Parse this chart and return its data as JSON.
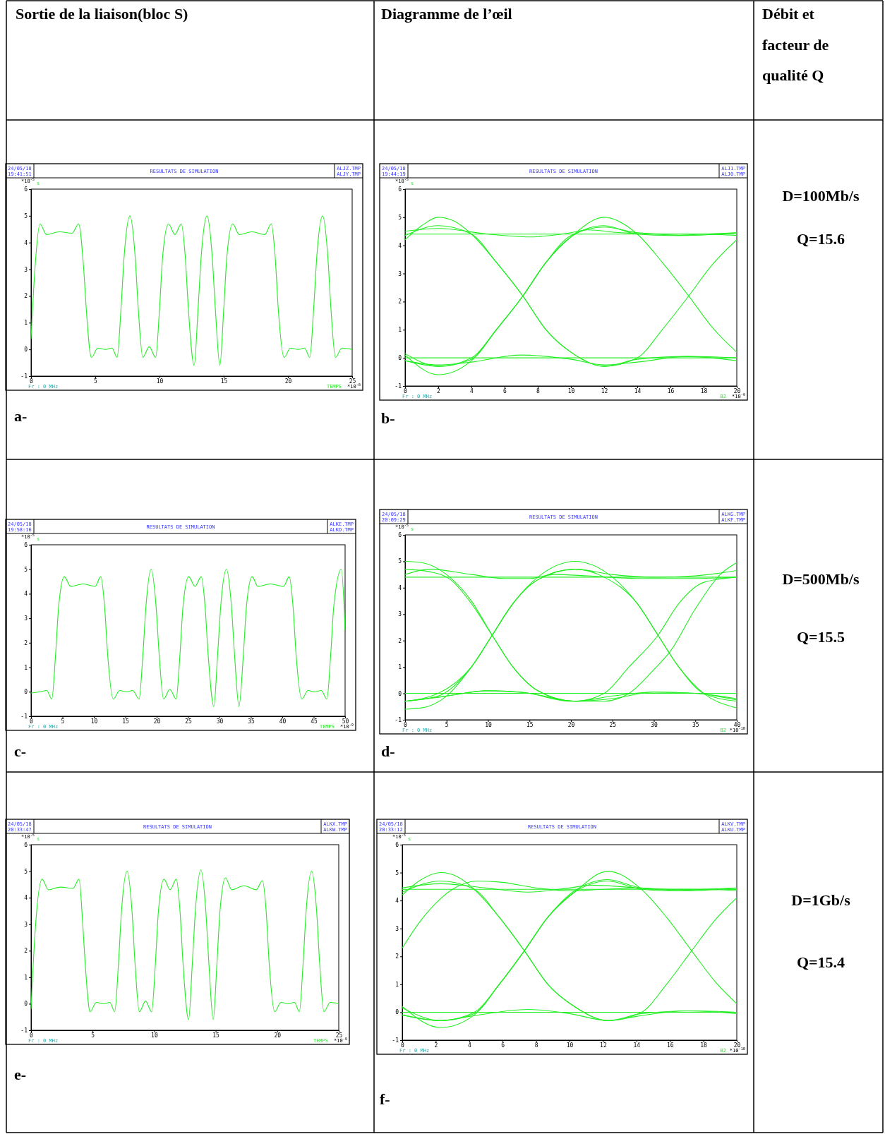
{
  "chart_data": [
    {
      "type": "line",
      "title": "RESULTATS DE SIMULATION",
      "xlabel": "TEMPS",
      "ylabel": "s",
      "xlim": [
        0,
        25
      ],
      "xticks": [
        0,
        5,
        10,
        15,
        20,
        25
      ],
      "ylim": [
        -1,
        6
      ],
      "yticks": [
        -1,
        0,
        1,
        2,
        3,
        4,
        5,
        6
      ],
      "annotations": [
        "24/05/18",
        "19:41:51",
        "ALJZ.TMP",
        "ALJY.TMP",
        "*10$^{-5}$",
        "Fr : 0 MHz",
        "*10$^{-8}$",
        "a-"
      ],
      "series": [
        {
          "color": "#22ee22",
          "x": [
            0,
            0.3,
            0.7,
            1.2,
            2.2,
            3.2,
            3.7,
            4.1,
            4.3,
            4.7,
            5.2,
            5.8,
            6.3,
            6.7,
            7.0,
            7.25,
            7.7,
            8.1,
            8.35,
            8.7,
            9.2,
            9.7,
            10.0,
            10.25,
            10.7,
            11.2,
            11.7,
            12.0,
            12.25,
            12.7,
            13.0,
            13.25,
            13.7,
            14.1,
            14.35,
            14.7,
            15.0,
            15.25,
            15.7,
            16.2,
            17.2,
            18.2,
            18.7,
            19.0,
            19.25,
            19.7,
            20.2,
            20.8,
            21.3,
            21.7,
            22.0,
            22.25,
            22.7,
            23.1,
            23.35,
            23.7,
            24.2,
            25
          ],
          "values": [
            0.4,
            3.0,
            4.7,
            4.3,
            4.4,
            4.35,
            4.7,
            3.0,
            1.5,
            -0.3,
            0.05,
            0,
            0.05,
            -0.3,
            1.5,
            3.5,
            5.0,
            3.5,
            1.5,
            -0.3,
            0.1,
            -0.3,
            1.5,
            3.5,
            4.7,
            4.3,
            4.7,
            3.5,
            1.5,
            -0.6,
            1.5,
            3.5,
            5.0,
            3.5,
            1.5,
            -0.6,
            1.5,
            3.5,
            4.7,
            4.3,
            4.4,
            4.3,
            4.7,
            3.5,
            1.5,
            -0.3,
            0.05,
            0,
            0.05,
            -0.3,
            1.5,
            3.5,
            5.0,
            3.5,
            1.5,
            -0.3,
            0.05,
            0
          ]
        }
      ]
    },
    {
      "type": "line",
      "title": "RESULTATS DE SIMULATION",
      "xlabel": "B2",
      "ylabel": "s",
      "xlim": [
        0,
        20
      ],
      "xticks": [
        0,
        2,
        4,
        6,
        8,
        10,
        12,
        14,
        16,
        18,
        20
      ],
      "ylim": [
        -1,
        6
      ],
      "yticks": [
        -1,
        0,
        1,
        2,
        3,
        4,
        5,
        6
      ],
      "annotations": [
        "24/05/18",
        "19:44:19",
        "ALJ1.TMP",
        "ALJ0.TMP",
        "*10$^{-5}$",
        "Fr : 0 MHz",
        "*10$^{-9}$",
        "b-"
      ],
      "series": [
        {
          "color": "#22ee22",
          "x": [
            0,
            20
          ],
          "values": [
            4.4,
            4.4
          ]
        },
        {
          "color": "#22ee22",
          "x": [
            0,
            20
          ],
          "values": [
            0,
            0
          ]
        },
        {
          "color": "#22ee22",
          "x": [
            0,
            2,
            5,
            7.5,
            10,
            11,
            13,
            15,
            17,
            20
          ],
          "values": [
            4.5,
            4.6,
            4.4,
            4.3,
            4.45,
            4.55,
            4.45,
            4.4,
            4.35,
            4.45
          ]
        },
        {
          "color": "#22ee22",
          "x": [
            0,
            2,
            4,
            7,
            10,
            12,
            14,
            17,
            20
          ],
          "values": [
            -0.1,
            -0.25,
            -0.15,
            0.1,
            -0.05,
            -0.25,
            -0.15,
            0.05,
            -0.1
          ]
        },
        {
          "color": "#22ee22",
          "x": [
            0,
            1,
            2,
            3,
            4,
            5.5,
            7.1,
            8.5,
            10,
            12,
            14,
            17,
            20
          ],
          "values": [
            4.2,
            4.7,
            5.0,
            4.85,
            4.4,
            3.4,
            2.2,
            1.0,
            0.2,
            -0.3,
            -0.05,
            0.05,
            0
          ]
        },
        {
          "color": "#22ee22",
          "x": [
            0,
            2,
            4,
            5.5,
            7.1,
            8.5,
            10,
            12,
            14,
            15.5,
            17.1,
            18.5,
            20
          ],
          "values": [
            4.35,
            4.7,
            4.4,
            3.4,
            2.2,
            1.0,
            0.2,
            -0.3,
            0,
            1.0,
            2.2,
            3.3,
            4.2
          ]
        },
        {
          "color": "#22ee22",
          "x": [
            0,
            2,
            4,
            5.5,
            7.1,
            8.5,
            10,
            12,
            14,
            15.5,
            17.1,
            18.5,
            20
          ],
          "values": [
            0.1,
            -0.6,
            -0.1,
            1.0,
            2.2,
            3.4,
            4.3,
            5.0,
            4.4,
            3.4,
            2.2,
            1.1,
            0.2
          ]
        },
        {
          "color": "#22ee22",
          "x": [
            0,
            2,
            4,
            5.5,
            7.1,
            8.5,
            10,
            12,
            14,
            16,
            18,
            20
          ],
          "values": [
            -0.1,
            -0.3,
            0,
            1.0,
            2.2,
            3.4,
            4.3,
            4.7,
            4.4,
            4.35,
            4.4,
            4.45
          ]
        },
        {
          "color": "#22ee22",
          "x": [
            0,
            2,
            4,
            5.5,
            7.1,
            8.5,
            10,
            12,
            14,
            16,
            18,
            20
          ],
          "values": [
            0.15,
            -0.3,
            -0.05,
            1.0,
            2.2,
            3.4,
            4.35,
            4.65,
            4.45,
            4.4,
            4.4,
            4.35
          ]
        }
      ]
    },
    {
      "type": "line",
      "title": "RESULTATS DE SIMULATION",
      "xlabel": "TEMPS",
      "ylabel": "s",
      "xlim": [
        0,
        50
      ],
      "xticks": [
        0,
        5,
        10,
        15,
        20,
        25,
        30,
        35,
        40,
        45,
        50
      ],
      "ylim": [
        -1,
        6
      ],
      "yticks": [
        -1,
        0,
        1,
        2,
        3,
        4,
        5,
        6
      ],
      "annotations": [
        "24/05/18",
        "19:58:16",
        "ALKE.TMP",
        "ALKD.TMP",
        "*10$^{-5}$",
        "Fr : 0 MHz",
        "*10$^{-9}$",
        "c-"
      ],
      "series": [
        {
          "color": "#22ee22",
          "x": [
            0,
            1.5,
            2.5,
            3.3,
            3.9,
            4.4,
            5.3,
            6.3,
            8.3,
            10.2,
            11.1,
            11.7,
            12.2,
            13.1,
            14.1,
            15.2,
            16.2,
            17.2,
            17.8,
            18.3,
            19.1,
            19.9,
            20.4,
            21.1,
            22.1,
            23.1,
            23.7,
            24.2,
            25.1,
            26.1,
            27.1,
            27.7,
            28.2,
            29.1,
            29.7,
            30.2,
            31.1,
            31.9,
            32.4,
            33.1,
            33.8,
            34.3,
            35.2,
            36.1,
            38.1,
            40.2,
            41.1,
            41.7,
            42.2,
            43.1,
            44.1,
            45.1,
            46.2,
            47.1,
            47.7,
            48.2,
            49.4,
            50
          ],
          "values": [
            -0.05,
            0,
            0.05,
            -0.3,
            1.5,
            3.5,
            4.7,
            4.3,
            4.4,
            4.3,
            4.7,
            3.5,
            1.5,
            -0.3,
            0.05,
            0,
            0.05,
            -0.3,
            1.5,
            3.5,
            5.0,
            3.5,
            1.5,
            -0.3,
            0.1,
            -0.3,
            1.5,
            3.5,
            4.7,
            4.3,
            4.7,
            3.5,
            1.5,
            -0.6,
            1.5,
            3.5,
            5.0,
            3.5,
            1.5,
            -0.6,
            1.5,
            3.5,
            4.7,
            4.3,
            4.4,
            4.3,
            4.7,
            3.5,
            1.5,
            -0.3,
            0.05,
            0,
            0.05,
            -0.3,
            1.5,
            3.5,
            5.0,
            2.5
          ]
        }
      ]
    },
    {
      "type": "line",
      "title": "RESULTATS DE SIMULATION",
      "xlabel": "B2",
      "ylabel": "s",
      "xlim": [
        0,
        40
      ],
      "xticks": [
        0,
        5,
        10,
        15,
        20,
        25,
        30,
        35,
        40
      ],
      "ylim": [
        -1,
        6
      ],
      "yticks": [
        -1,
        0,
        1,
        2,
        3,
        4,
        5,
        6
      ],
      "annotations": [
        "24/05/18",
        "20:09:29",
        "ALKG.TMP",
        "ALKF.TMP",
        "*10$^{-5}$",
        "Fr : 0 MHz",
        "*10$^{-10}$",
        "d-"
      ],
      "series": [
        {
          "color": "#22ee22",
          "x": [
            0,
            40
          ],
          "values": [
            4.4,
            4.4
          ]
        },
        {
          "color": "#22ee22",
          "x": [
            0,
            40
          ],
          "values": [
            0,
            0
          ]
        },
        {
          "color": "#22ee22",
          "x": [
            0,
            2,
            5,
            8,
            10.5,
            13,
            16,
            20.5,
            25,
            30,
            35,
            40
          ],
          "values": [
            5.0,
            4.95,
            4.5,
            3.5,
            2.2,
            1.0,
            0.1,
            -0.3,
            -0.1,
            0.05,
            0,
            -0.25
          ]
        },
        {
          "color": "#22ee22",
          "x": [
            0,
            3,
            5.5,
            8,
            10.5,
            13,
            16,
            20.5,
            24,
            27,
            30.5,
            33,
            36,
            40
          ],
          "values": [
            4.7,
            4.6,
            4.3,
            3.4,
            2.2,
            1.0,
            0.1,
            -0.3,
            0,
            1.0,
            2.2,
            3.4,
            4.2,
            4.4
          ]
        },
        {
          "color": "#22ee22",
          "x": [
            0,
            2,
            5,
            8,
            10.5,
            13,
            16,
            20.5,
            25,
            28,
            30.5,
            33,
            36,
            40
          ],
          "values": [
            -0.6,
            -0.55,
            -0.1,
            1.0,
            2.2,
            3.4,
            4.4,
            5.0,
            4.4,
            3.4,
            2.2,
            1.0,
            0,
            -0.55
          ]
        },
        {
          "color": "#22ee22",
          "x": [
            0,
            4,
            8,
            10.5,
            13,
            16,
            20.5,
            24,
            28,
            30.5,
            33,
            36,
            40
          ],
          "values": [
            -0.3,
            -0.1,
            1.0,
            2.2,
            3.4,
            4.3,
            4.7,
            4.4,
            3.4,
            2.2,
            1.0,
            0,
            -0.3
          ]
        },
        {
          "color": "#22ee22",
          "x": [
            0,
            4,
            8,
            10.5,
            13,
            16,
            20.5,
            25,
            30,
            35,
            40
          ],
          "values": [
            -0.3,
            0,
            1.0,
            2.2,
            3.4,
            4.3,
            4.7,
            4.5,
            4.4,
            4.45,
            4.65
          ]
        },
        {
          "color": "#22ee22",
          "x": [
            0,
            5,
            10,
            15,
            20.5,
            24,
            27,
            30,
            32,
            35,
            38,
            40
          ],
          "values": [
            -0.3,
            -0.1,
            0.1,
            0,
            -0.3,
            -0.3,
            0,
            0.9,
            1.6,
            3.2,
            4.5,
            4.95
          ]
        },
        {
          "color": "#22ee22",
          "x": [
            0,
            3,
            8,
            12,
            15,
            18,
            22,
            28,
            35,
            40
          ],
          "values": [
            4.5,
            4.7,
            4.5,
            4.35,
            4.35,
            4.5,
            4.45,
            4.35,
            4.35,
            4.4
          ]
        },
        {
          "color": "#22ee22",
          "x": [
            0,
            4,
            10,
            14,
            20,
            25,
            30,
            35,
            40
          ],
          "values": [
            -0.3,
            -0.15,
            0.1,
            0.05,
            -0.3,
            -0.2,
            0.05,
            0,
            -0.2
          ]
        }
      ]
    },
    {
      "type": "line",
      "title": "RESULTATS DE SIMULATION",
      "xlabel": "TEMPS",
      "ylabel": "s",
      "xlim": [
        0,
        25
      ],
      "xticks": [
        0,
        5,
        10,
        15,
        20,
        25
      ],
      "ylim": [
        -1,
        6
      ],
      "yticks": [
        -1,
        0,
        1,
        2,
        3,
        4,
        5,
        6
      ],
      "annotations": [
        "24/05/18",
        "20:33:47",
        "ALKX.TMP",
        "ALKW.TMP",
        "*10$^{-5}$",
        "Fr : 0 MHz",
        "*10$^{-9}$",
        "e-"
      ],
      "series": [
        {
          "color": "#22ee22",
          "x": [
            0,
            0.3,
            0.9,
            1.4,
            2.4,
            3.4,
            3.9,
            4.2,
            4.4,
            4.8,
            5.3,
            5.9,
            6.4,
            6.8,
            7.1,
            7.35,
            7.8,
            8.2,
            8.45,
            8.8,
            9.3,
            9.8,
            10.1,
            10.35,
            10.8,
            11.3,
            11.8,
            12.1,
            12.35,
            12.8,
            13.1,
            13.35,
            13.8,
            14.2,
            14.45,
            14.8,
            15.1,
            15.35,
            15.8,
            16.3,
            17.3,
            18.3,
            18.8,
            19.1,
            19.35,
            19.8,
            20.3,
            20.9,
            21.4,
            21.8,
            22.1,
            22.35,
            22.8,
            23.2,
            23.45,
            23.8,
            24.3,
            25
          ],
          "values": [
            -0.2,
            2.5,
            4.7,
            4.3,
            4.4,
            4.35,
            4.7,
            3.0,
            1.5,
            -0.3,
            0.05,
            0,
            0.05,
            -0.3,
            1.5,
            3.5,
            5.0,
            3.5,
            1.5,
            -0.3,
            0.1,
            -0.3,
            1.5,
            3.5,
            4.7,
            4.3,
            4.7,
            3.5,
            1.5,
            -0.6,
            1.5,
            3.5,
            5.05,
            3.5,
            1.5,
            -0.6,
            1.5,
            3.5,
            4.75,
            4.3,
            4.45,
            4.3,
            4.65,
            3.5,
            1.5,
            -0.3,
            0.05,
            0,
            0.05,
            -0.3,
            1.5,
            3.5,
            5.0,
            3.5,
            1.5,
            -0.3,
            0.05,
            0
          ]
        }
      ]
    },
    {
      "type": "line",
      "title": "RESULTATS DE SIMULATION",
      "xlabel": "B2",
      "ylabel": "s",
      "xlim": [
        0,
        20
      ],
      "xticks": [
        0,
        2,
        4,
        6,
        8,
        10,
        12,
        14,
        16,
        18,
        20
      ],
      "ylim": [
        -1,
        6
      ],
      "yticks": [
        -1,
        0,
        1,
        2,
        3,
        4,
        5,
        6
      ],
      "annotations": [
        "24/05/18",
        "20:33:12",
        "ALKV.TMP",
        "ALKU.TMP",
        "*10$^{-5}$",
        "Fr : 0 MHz",
        "*10$^{-10}$",
        "f-"
      ],
      "series": [
        {
          "color": "#22ee22",
          "x": [
            0,
            20
          ],
          "values": [
            4.4,
            4.4
          ]
        },
        {
          "color": "#22ee22",
          "x": [
            0,
            20
          ],
          "values": [
            0,
            0
          ]
        },
        {
          "color": "#22ee22",
          "x": [
            0,
            2.3,
            5,
            7.5,
            10,
            11.3,
            13,
            15,
            17,
            20
          ],
          "values": [
            4.45,
            4.6,
            4.45,
            4.3,
            4.45,
            4.55,
            4.5,
            4.4,
            4.35,
            4.45
          ]
        },
        {
          "color": "#22ee22",
          "x": [
            0,
            2.3,
            4,
            7.5,
            10,
            12.3,
            14,
            17,
            20
          ],
          "values": [
            -0.1,
            -0.3,
            -0.15,
            0.1,
            -0.05,
            -0.3,
            -0.15,
            0.05,
            -0.05
          ]
        },
        {
          "color": "#22ee22",
          "x": [
            0,
            1,
            2.3,
            3.3,
            4.3,
            5.8,
            7.3,
            8.7,
            10.3,
            12.3,
            14.3,
            17.3,
            20
          ],
          "values": [
            4.2,
            4.7,
            5.0,
            4.85,
            4.4,
            3.4,
            2.2,
            1.0,
            0.2,
            -0.3,
            -0.05,
            0.05,
            0
          ]
        },
        {
          "color": "#22ee22",
          "x": [
            0,
            2.3,
            4.3,
            5.8,
            7.3,
            8.7,
            10.3,
            12.3,
            14.3,
            15.8,
            17.3,
            18.7,
            20
          ],
          "values": [
            4.3,
            4.7,
            4.4,
            3.4,
            2.2,
            1.0,
            0.2,
            -0.3,
            0,
            1.0,
            2.2,
            3.3,
            4.1
          ]
        },
        {
          "color": "#22ee22",
          "x": [
            0,
            2.3,
            4.3,
            5.8,
            7.3,
            8.7,
            10.3,
            12.3,
            14.3,
            15.8,
            17.3,
            18.7,
            20
          ],
          "values": [
            0.2,
            -0.55,
            -0.1,
            1.0,
            2.2,
            3.4,
            4.3,
            5.05,
            4.4,
            3.4,
            2.2,
            1.1,
            0.3
          ]
        },
        {
          "color": "#22ee22",
          "x": [
            0,
            2.3,
            4.3,
            5.8,
            7.3,
            8.7,
            10.3,
            12.3,
            14.3,
            16,
            18,
            20
          ],
          "values": [
            -0.1,
            -0.3,
            0,
            1.0,
            2.2,
            3.4,
            4.3,
            4.7,
            4.4,
            4.35,
            4.4,
            4.45
          ]
        },
        {
          "color": "#22ee22",
          "x": [
            0,
            1,
            2,
            3,
            4.5,
            6,
            8,
            10,
            12,
            14,
            16,
            20
          ],
          "values": [
            2.3,
            3.2,
            3.9,
            4.4,
            4.7,
            4.65,
            4.45,
            4.35,
            4.4,
            4.45,
            4.4,
            4.4
          ]
        },
        {
          "color": "#22ee22",
          "x": [
            0,
            2.3,
            4.3,
            5.8,
            7.3,
            8.7,
            10.3,
            12.3,
            14.3,
            16,
            18,
            20
          ],
          "values": [
            0.15,
            -0.3,
            -0.05,
            1.0,
            2.2,
            3.4,
            4.35,
            4.75,
            4.45,
            4.4,
            4.4,
            4.35
          ]
        }
      ]
    },
    {
      "type": "other",
      "annotations": [
        "Sortie de la liaison(bloc S)",
        "Diagramme de l’œil",
        "Débit et facteur de qualité Q",
        "D=100Mb/s",
        "Q=15.6",
        "D=500Mb/s",
        "Q=15.5",
        "D=1Gb/s",
        "Q=15.4"
      ]
    }
  ]
}
